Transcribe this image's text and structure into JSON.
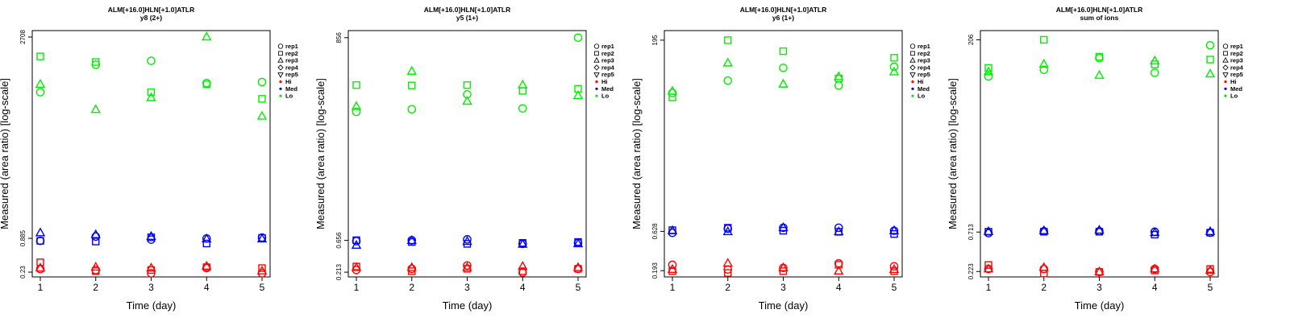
{
  "colors": {
    "Hi": "#ff0000",
    "Med": "#0000ff",
    "Lo": "#00ee00"
  },
  "chart_data": [
    {
      "type": "scatter",
      "title": "ALM[+16.0]HLN[+1.0]ATLR",
      "subtitle": "y8 (2+)",
      "xlabel": "Time (day)",
      "ylabel": "Measured (area ratio) [log-scale]",
      "log_y": true,
      "x_ticks": [
        1,
        2,
        3,
        4,
        5
      ],
      "y_ticks": [
        0.23,
        0.885,
        2708
      ],
      "y_tick_labels": [
        "0.23",
        "0.885",
        "2708"
      ],
      "ylim": [
        0.19,
        3500
      ],
      "legend": [
        "rep1",
        "rep2",
        "rep3",
        "rep4",
        "rep5",
        "Hi",
        "Med",
        "Lo"
      ],
      "legend_position": "right",
      "series": [
        {
          "name": "rep1",
          "group": "Hi",
          "x": [
            1,
            2,
            3,
            4,
            5
          ],
          "y": [
            0.26,
            0.25,
            0.22,
            0.27,
            0.22
          ]
        },
        {
          "name": "rep2",
          "group": "Hi",
          "x": [
            1,
            2,
            3,
            4,
            5
          ],
          "y": [
            0.34,
            0.24,
            0.25,
            0.28,
            0.27
          ]
        },
        {
          "name": "rep3",
          "group": "Hi",
          "x": [
            1,
            2,
            3,
            4,
            5
          ],
          "y": [
            0.27,
            0.28,
            0.27,
            0.29,
            0.24
          ]
        },
        {
          "name": "rep1",
          "group": "Med",
          "x": [
            1,
            2,
            3,
            4,
            5
          ],
          "y": [
            0.8,
            0.95,
            0.84,
            0.88,
            0.91
          ]
        },
        {
          "name": "rep2",
          "group": "Med",
          "x": [
            1,
            2,
            3,
            4,
            5
          ],
          "y": [
            0.8,
            0.78,
            0.92,
            0.72,
            0.9
          ]
        },
        {
          "name": "rep3",
          "group": "Med",
          "x": [
            1,
            2,
            3,
            4,
            5
          ],
          "y": [
            1.1,
            1.02,
            0.95,
            0.86,
            0.86
          ]
        },
        {
          "name": "rep1",
          "group": "Lo",
          "x": [
            1,
            2,
            3,
            4,
            5
          ],
          "y": [
            300,
            900,
            1050,
            430,
            450
          ]
        },
        {
          "name": "rep2",
          "group": "Lo",
          "x": [
            1,
            2,
            3,
            4,
            5
          ],
          "y": [
            1250,
            1000,
            300,
            410,
            230
          ]
        },
        {
          "name": "rep3",
          "group": "Lo",
          "x": [
            1,
            2,
            3,
            4,
            5
          ],
          "y": [
            410,
            150,
            240,
            2708,
            115
          ]
        }
      ]
    },
    {
      "type": "scatter",
      "title": "ALM[+16.0]HLN[+1.0]ATLR",
      "subtitle": "y5 (1+)",
      "xlabel": "Time (day)",
      "ylabel": "Measured (area ratio) [log-scale]",
      "log_y": true,
      "x_ticks": [
        1,
        2,
        3,
        4,
        5
      ],
      "y_ticks": [
        0.213,
        0.656,
        856
      ],
      "y_tick_labels": [
        "0.213",
        "0.656",
        "856"
      ],
      "ylim": [
        0.18,
        1100
      ],
      "legend": [
        "rep1",
        "rep2",
        "rep3",
        "rep4",
        "rep5",
        "Hi",
        "Med",
        "Lo"
      ],
      "legend_position": "right",
      "series": [
        {
          "name": "rep1",
          "group": "Hi",
          "x": [
            1,
            2,
            3,
            4,
            5
          ],
          "y": [
            0.23,
            0.24,
            0.27,
            0.21,
            0.24
          ]
        },
        {
          "name": "rep2",
          "group": "Hi",
          "x": [
            1,
            2,
            3,
            4,
            5
          ],
          "y": [
            0.26,
            0.22,
            0.24,
            0.22,
            0.24
          ]
        },
        {
          "name": "rep3",
          "group": "Hi",
          "x": [
            1,
            2,
            3,
            4,
            5
          ],
          "y": [
            0.25,
            0.25,
            0.25,
            0.26,
            0.25
          ]
        },
        {
          "name": "rep1",
          "group": "Med",
          "x": [
            1,
            2,
            3,
            4,
            5
          ],
          "y": [
            0.64,
            0.66,
            0.68,
            0.58,
            0.6
          ]
        },
        {
          "name": "rep2",
          "group": "Med",
          "x": [
            1,
            2,
            3,
            4,
            5
          ],
          "y": [
            0.66,
            0.62,
            0.58,
            0.6,
            0.62
          ]
        },
        {
          "name": "rep3",
          "group": "Med",
          "x": [
            1,
            2,
            3,
            4,
            5
          ],
          "y": [
            0.55,
            0.65,
            0.63,
            0.57,
            0.58
          ]
        },
        {
          "name": "rep1",
          "group": "Lo",
          "x": [
            1,
            2,
            3,
            4,
            5
          ],
          "y": [
            62,
            68,
            115,
            70,
            856
          ]
        },
        {
          "name": "rep2",
          "group": "Lo",
          "x": [
            1,
            2,
            3,
            4,
            5
          ],
          "y": [
            160,
            158,
            160,
            130,
            140
          ]
        },
        {
          "name": "rep3",
          "group": "Lo",
          "x": [
            1,
            2,
            3,
            4,
            5
          ],
          "y": [
            75,
            260,
            90,
            160,
            110
          ]
        }
      ]
    },
    {
      "type": "scatter",
      "title": "ALM[+16.0]HLN[+1.0]ATLR",
      "subtitle": "y6 (1+)",
      "xlabel": "Time (day)",
      "ylabel": "Measured (area ratio) [log-scale]",
      "log_y": true,
      "x_ticks": [
        1,
        2,
        3,
        4,
        5
      ],
      "y_ticks": [
        0.193,
        0.628,
        195
      ],
      "y_tick_labels": [
        "0.193",
        "0.628",
        "195"
      ],
      "ylim": [
        0.16,
        260
      ],
      "legend": [
        "rep1",
        "rep2",
        "rep3",
        "rep4",
        "rep5",
        "Hi",
        "Med",
        "Lo"
      ],
      "legend_position": "right",
      "series": [
        {
          "name": "rep1",
          "group": "Hi",
          "x": [
            1,
            2,
            3,
            4,
            5
          ],
          "y": [
            0.23,
            0.2,
            0.21,
            0.24,
            0.22
          ]
        },
        {
          "name": "rep2",
          "group": "Hi",
          "x": [
            1,
            2,
            3,
            4,
            5
          ],
          "y": [
            0.19,
            0.18,
            0.19,
            0.23,
            0.19
          ]
        },
        {
          "name": "rep3",
          "group": "Hi",
          "x": [
            1,
            2,
            3,
            4,
            5
          ],
          "y": [
            0.2,
            0.24,
            0.21,
            0.19,
            0.2
          ]
        },
        {
          "name": "rep1",
          "group": "Med",
          "x": [
            1,
            2,
            3,
            4,
            5
          ],
          "y": [
            0.6,
            0.68,
            0.7,
            0.7,
            0.64
          ]
        },
        {
          "name": "rep2",
          "group": "Med",
          "x": [
            1,
            2,
            3,
            4,
            5
          ],
          "y": [
            0.65,
            0.7,
            0.64,
            0.62,
            0.58
          ]
        },
        {
          "name": "rep3",
          "group": "Med",
          "x": [
            1,
            2,
            3,
            4,
            5
          ],
          "y": [
            0.64,
            0.62,
            0.7,
            0.62,
            0.64
          ]
        },
        {
          "name": "rep1",
          "group": "Lo",
          "x": [
            1,
            2,
            3,
            4,
            5
          ],
          "y": [
            40,
            58,
            85,
            50,
            88
          ]
        },
        {
          "name": "rep2",
          "group": "Lo",
          "x": [
            1,
            2,
            3,
            4,
            5
          ],
          "y": [
            35,
            195,
            140,
            62,
            115
          ]
        },
        {
          "name": "rep3",
          "group": "Lo",
          "x": [
            1,
            2,
            3,
            4,
            5
          ],
          "y": [
            42,
            98,
            52,
            65,
            75
          ]
        }
      ]
    },
    {
      "type": "scatter",
      "title": "ALM[+16.0]HLN[+1.0]ATLR",
      "subtitle": "sum of ions",
      "xlabel": "Time (day)",
      "ylabel": "Measured (area ratio) [log-scale]",
      "log_y": true,
      "x_ticks": [
        1,
        2,
        3,
        4,
        5
      ],
      "y_ticks": [
        0.223,
        0.713,
        206
      ],
      "y_tick_labels": [
        "0.223",
        "0.713",
        "206"
      ],
      "ylim": [
        0.19,
        270
      ],
      "legend": [
        "rep1",
        "rep2",
        "rep3",
        "rep4",
        "rep5",
        "Hi",
        "Med",
        "Lo"
      ],
      "legend_position": "right",
      "series": [
        {
          "name": "rep1",
          "group": "Hi",
          "x": [
            1,
            2,
            3,
            4,
            5
          ],
          "y": [
            0.24,
            0.24,
            0.22,
            0.24,
            0.22
          ]
        },
        {
          "name": "rep2",
          "group": "Hi",
          "x": [
            1,
            2,
            3,
            4,
            5
          ],
          "y": [
            0.27,
            0.21,
            0.22,
            0.23,
            0.24
          ]
        },
        {
          "name": "rep3",
          "group": "Hi",
          "x": [
            1,
            2,
            3,
            4,
            5
          ],
          "y": [
            0.24,
            0.25,
            0.22,
            0.24,
            0.23
          ]
        },
        {
          "name": "rep1",
          "group": "Med",
          "x": [
            1,
            2,
            3,
            4,
            5
          ],
          "y": [
            0.69,
            0.73,
            0.73,
            0.72,
            0.7
          ]
        },
        {
          "name": "rep2",
          "group": "Med",
          "x": [
            1,
            2,
            3,
            4,
            5
          ],
          "y": [
            0.72,
            0.72,
            0.72,
            0.66,
            0.7
          ]
        },
        {
          "name": "rep3",
          "group": "Med",
          "x": [
            1,
            2,
            3,
            4,
            5
          ],
          "y": [
            0.72,
            0.74,
            0.75,
            0.7,
            0.72
          ]
        },
        {
          "name": "rep1",
          "group": "Lo",
          "x": [
            1,
            2,
            3,
            4,
            5
          ],
          "y": [
            70,
            85,
            120,
            78,
            175
          ]
        },
        {
          "name": "rep2",
          "group": "Lo",
          "x": [
            1,
            2,
            3,
            4,
            5
          ],
          "y": [
            90,
            206,
            125,
            100,
            115
          ]
        },
        {
          "name": "rep3",
          "group": "Lo",
          "x": [
            1,
            2,
            3,
            4,
            5
          ],
          "y": [
            80,
            100,
            72,
            110,
            75
          ]
        }
      ]
    }
  ]
}
